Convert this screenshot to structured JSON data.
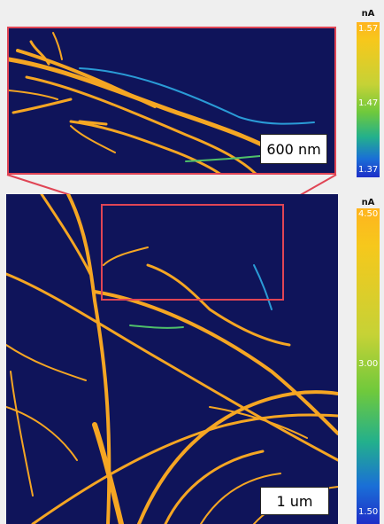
{
  "inset": {
    "scalebar_label": "600 nm"
  },
  "main": {
    "scalebar_label": "1 um"
  },
  "colorbar_top": {
    "unit": "nA",
    "max": "1.57",
    "mid": "1.47",
    "min": "1.37"
  },
  "colorbar_bottom": {
    "unit": "nA",
    "max": "4.50",
    "mid": "3.00",
    "min": "1.50"
  },
  "colors": {
    "background": "#0f145a",
    "fiber": "#f5a623",
    "highlight": "#e04555"
  }
}
